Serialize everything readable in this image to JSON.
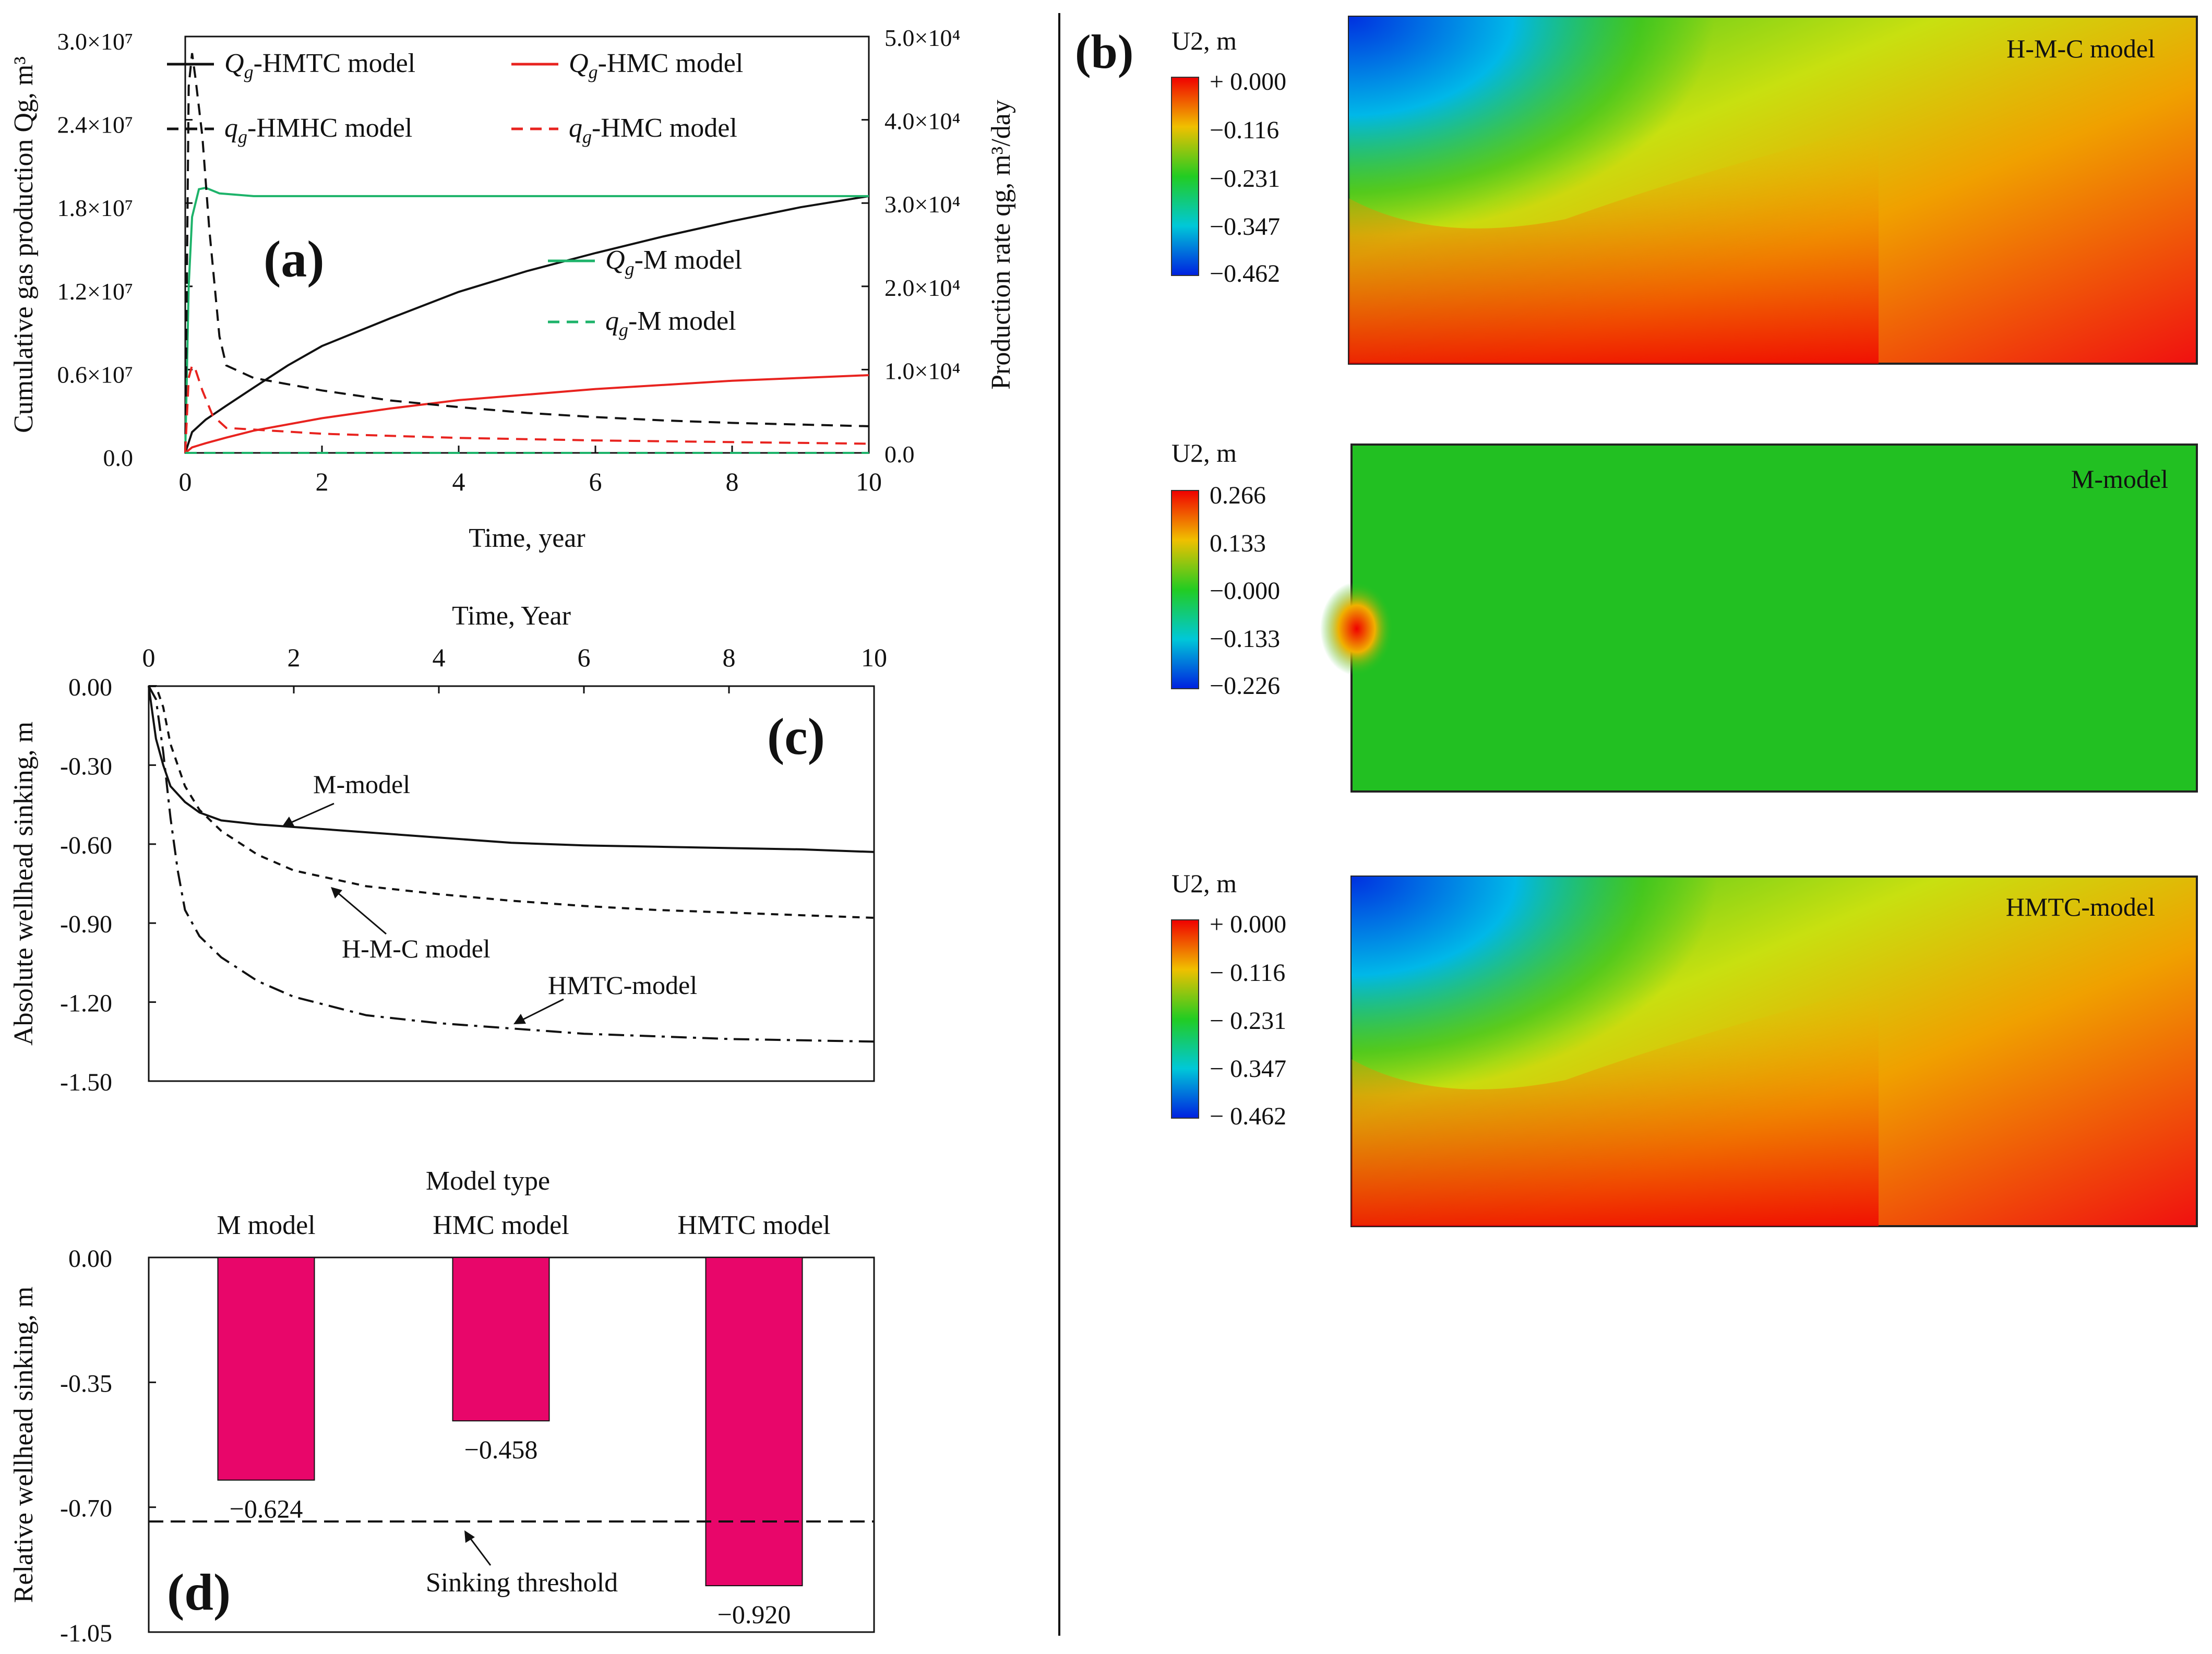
{
  "panel_a": {
    "label": "(a)",
    "xlabel": "Time, year",
    "ylabel_left": "Cumulative gas production Qg, m³",
    "ylabel_right": "Production rate qg, m³/day",
    "x_ticks": [
      "0",
      "2",
      "4",
      "6",
      "8",
      "10"
    ],
    "y_left_ticks": [
      "0.0",
      "0.6×10⁷",
      "1.2×10⁷",
      "1.8×10⁷",
      "2.4×10⁷",
      "3.0×10⁷"
    ],
    "y_right_ticks": [
      "0.0",
      "1.0×10⁴",
      "2.0×10⁴",
      "3.0×10⁴",
      "4.0×10⁴",
      "5.0×10⁴"
    ],
    "legend": [
      {
        "prefix": "Qg",
        "text": "-HMTC model",
        "color": "#111111",
        "dash": "solid"
      },
      {
        "prefix": "Qg",
        "text": "-HMC model",
        "color": "#e8231f",
        "dash": "solid"
      },
      {
        "prefix": "qg",
        "text": "-HMHC model",
        "color": "#111111",
        "dash": "dash"
      },
      {
        "prefix": "qg",
        "text": "-HMC model",
        "color": "#e8231f",
        "dash": "dash"
      },
      {
        "prefix": "Qg",
        "text": "-M model",
        "color": "#1db36a",
        "dash": "solid"
      },
      {
        "prefix": "qg",
        "text": "-M model",
        "color": "#1db36a",
        "dash": "dash"
      }
    ]
  },
  "panel_b": {
    "label": "(b)",
    "maps": [
      {
        "title": "H-M-C model",
        "unit": "U2, m",
        "scale": [
          "+ 0.000",
          "−0.116",
          "−0.231",
          "−0.347",
          "−0.462"
        ]
      },
      {
        "title": "M-model",
        "unit": "U2, m",
        "scale": [
          "0.266",
          "0.133",
          "−0.000",
          "−0.133",
          "−0.226"
        ]
      },
      {
        "title": "HMTC-model",
        "unit": "U2, m",
        "scale": [
          "+ 0.000",
          "− 0.116",
          "− 0.231",
          "− 0.347",
          "− 0.462"
        ]
      }
    ]
  },
  "panel_c": {
    "label": "(c)",
    "xlabel": "Time, Year",
    "ylabel": "Absolute wellhead sinking, m",
    "x_ticks": [
      "0",
      "2",
      "4",
      "6",
      "8",
      "10"
    ],
    "y_ticks": [
      "0.00",
      "-0.30",
      "-0.60",
      "-0.90",
      "-1.20",
      "-1.50"
    ],
    "annotations": [
      "M-model",
      "H-M-C model",
      "HMTC-model"
    ]
  },
  "panel_d": {
    "label": "(d)",
    "xlabel": "Model type",
    "ylabel": "Relative wellhead sinking, m",
    "y_ticks": [
      "0.00",
      "-0.35",
      "-0.70",
      "-1.05"
    ],
    "threshold_label": "Sinking threshold",
    "value_labels": [
      "−0.624",
      "−0.458",
      "−0.920"
    ]
  },
  "colors": {
    "bar": "#e8066a",
    "red": "#e8231f",
    "green": "#1db36a",
    "black": "#111111"
  },
  "chart_data": [
    {
      "type": "line",
      "title": "(a)",
      "xlabel": "Time, year",
      "ylabel": "Cumulative gas production Qg, m³",
      "ylabel_right": "Production rate qg, m³/day",
      "xlim": [
        0,
        10
      ],
      "ylim": [
        0,
        30000000
      ],
      "ylim_right": [
        0,
        50000
      ],
      "series": [
        {
          "name": "Qg-HMTC model",
          "axis": "left",
          "x": [
            0,
            0.1,
            0.3,
            0.6,
            1,
            1.5,
            2,
            3,
            4,
            5,
            6,
            7,
            8,
            9,
            10
          ],
          "values": [
            0,
            1500000,
            2400000,
            3400000,
            4700000,
            6300000,
            7700000,
            9700000,
            11600000,
            13100000,
            14400000,
            15600000,
            16700000,
            17700000,
            18500000
          ]
        },
        {
          "name": "Qg-HMC model",
          "axis": "left",
          "x": [
            0,
            0.1,
            0.3,
            0.6,
            1,
            2,
            3,
            4,
            5,
            6,
            7,
            8,
            9,
            10
          ],
          "values": [
            0,
            400000,
            700000,
            1100000,
            1600000,
            2500000,
            3200000,
            3800000,
            4200000,
            4600000,
            4900000,
            5200000,
            5400000,
            5600000
          ]
        },
        {
          "name": "Qg-M model",
          "axis": "left",
          "x": [
            0,
            0.05,
            0.1,
            0.2,
            0.3,
            0.5,
            1,
            2,
            4,
            6,
            8,
            10
          ],
          "values": [
            0,
            12000000,
            17000000,
            19000000,
            19100000,
            18700000,
            18500000,
            18500000,
            18500000,
            18500000,
            18500000,
            18500000
          ]
        },
        {
          "name": "qg-HMHC model",
          "axis": "right",
          "x": [
            0,
            0.05,
            0.1,
            0.15,
            0.25,
            0.35,
            0.5,
            0.6,
            1,
            2,
            3,
            4,
            5,
            6,
            7,
            8,
            9,
            10
          ],
          "values": [
            0,
            44000,
            48000,
            45000,
            38000,
            27000,
            14000,
            10500,
            9000,
            7500,
            6300,
            5500,
            4800,
            4300,
            3900,
            3600,
            3400,
            3200
          ]
        },
        {
          "name": "qg-HMC model",
          "axis": "right",
          "x": [
            0,
            0.05,
            0.1,
            0.15,
            0.25,
            0.4,
            0.6,
            1,
            2,
            4,
            6,
            8,
            10
          ],
          "values": [
            0,
            9000,
            10500,
            10000,
            7500,
            4500,
            3000,
            2800,
            2300,
            1800,
            1500,
            1300,
            1100
          ]
        },
        {
          "name": "qg-M model",
          "axis": "right",
          "x": [
            0,
            0.05,
            0.1,
            10
          ],
          "values": [
            0,
            0,
            0,
            0
          ]
        }
      ]
    },
    {
      "type": "line",
      "title": "(c)",
      "xlabel": "Time, Year",
      "ylabel": "Absolute wellhead sinking, m",
      "xlim": [
        0,
        10
      ],
      "ylim": [
        -1.5,
        0
      ],
      "series": [
        {
          "name": "M-model",
          "x": [
            0,
            0.05,
            0.1,
            0.2,
            0.3,
            0.5,
            0.7,
            1,
            1.5,
            2,
            3,
            4,
            5,
            6,
            7,
            8,
            9,
            10
          ],
          "values": [
            0,
            -0.1,
            -0.2,
            -0.3,
            -0.38,
            -0.44,
            -0.48,
            -0.51,
            -0.525,
            -0.535,
            -0.555,
            -0.575,
            -0.595,
            -0.605,
            -0.61,
            -0.615,
            -0.62,
            -0.63
          ]
        },
        {
          "name": "H-M-C model",
          "x": [
            0,
            0.1,
            0.2,
            0.3,
            0.5,
            0.7,
            1,
            1.5,
            2,
            3,
            4,
            5,
            6,
            7,
            8,
            9,
            10
          ],
          "values": [
            0,
            0,
            -0.08,
            -0.22,
            -0.38,
            -0.47,
            -0.55,
            -0.64,
            -0.7,
            -0.76,
            -0.79,
            -0.815,
            -0.835,
            -0.85,
            -0.86,
            -0.87,
            -0.88
          ]
        },
        {
          "name": "HMTC-model",
          "x": [
            0,
            0.1,
            0.2,
            0.3,
            0.4,
            0.5,
            0.7,
            1,
            1.5,
            2,
            3,
            4,
            5,
            6,
            7,
            8,
            9,
            10
          ],
          "values": [
            0,
            -0.05,
            -0.25,
            -0.5,
            -0.7,
            -0.85,
            -0.95,
            -1.03,
            -1.12,
            -1.18,
            -1.25,
            -1.28,
            -1.3,
            -1.32,
            -1.33,
            -1.34,
            -1.345,
            -1.35
          ]
        }
      ]
    },
    {
      "type": "bar",
      "title": "(d)",
      "xlabel": "Model type",
      "ylabel": "Relative wellhead sinking, m",
      "categories": [
        "M model",
        "HMC model",
        "HMTC model"
      ],
      "values": [
        -0.624,
        -0.458,
        -0.92
      ],
      "ylim": [
        -1.05,
        0
      ],
      "threshold": -0.74,
      "threshold_label": "Sinking threshold"
    }
  ]
}
